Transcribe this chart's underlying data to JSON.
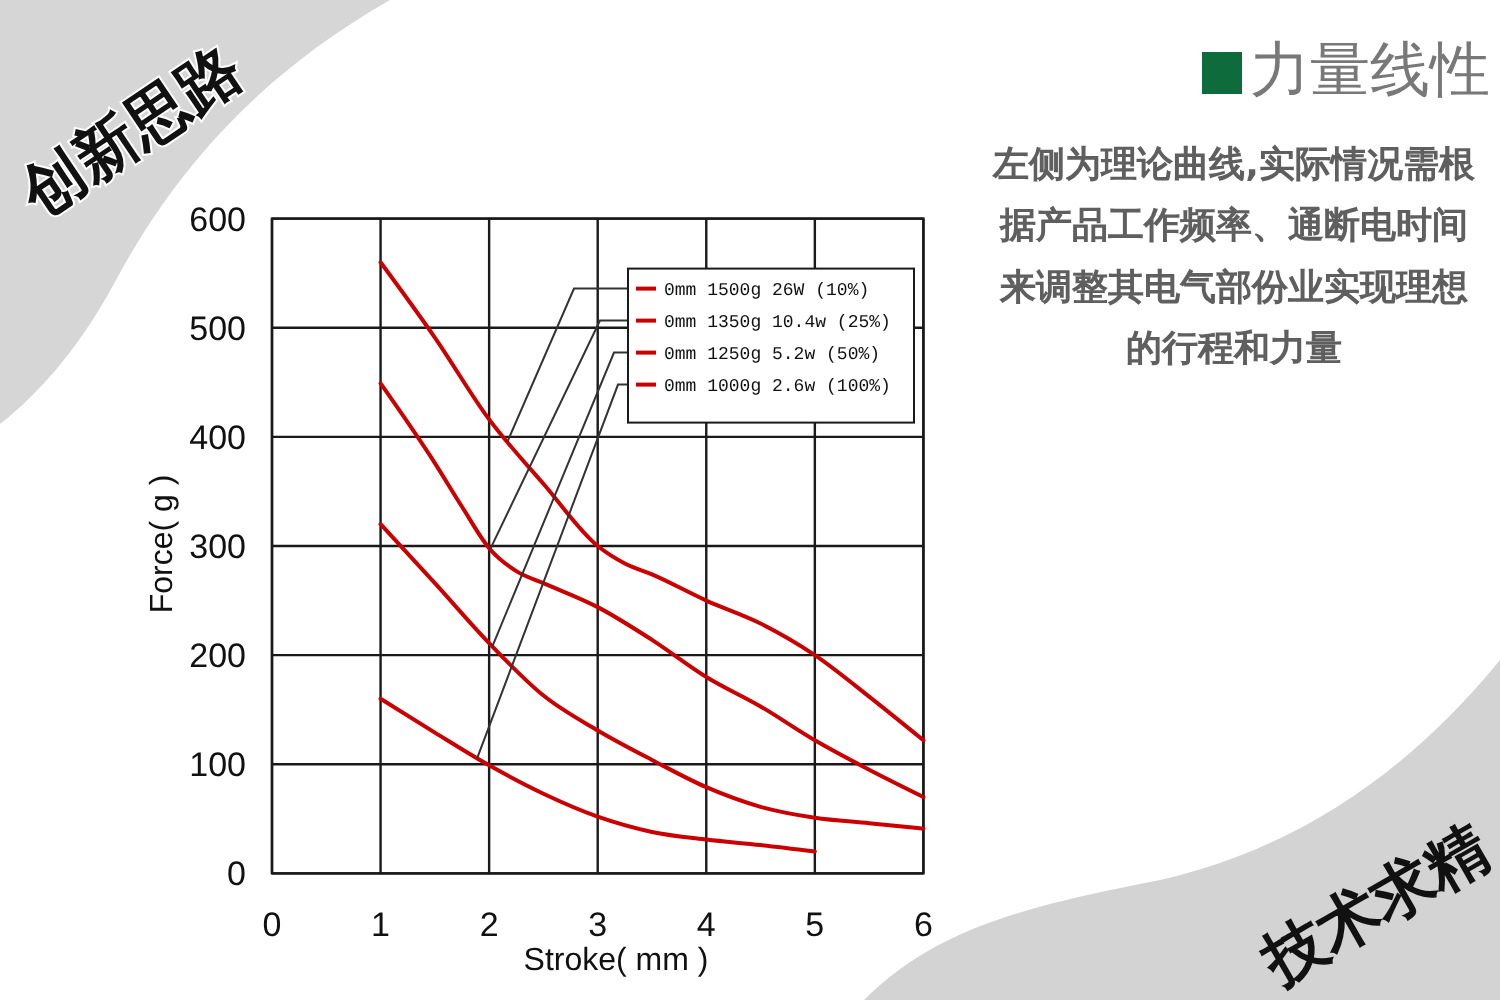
{
  "chart_data": {
    "type": "line",
    "title": "力量线性",
    "xlabel": "Stroke( mm )",
    "ylabel": "Force( g )",
    "xlim": [
      0,
      6
    ],
    "xticks": [
      0,
      1,
      2,
      3,
      4,
      5,
      6
    ],
    "ylim": [
      0,
      600
    ],
    "yticks": [
      0,
      100,
      200,
      300,
      400,
      500,
      600
    ],
    "grid": true,
    "legend": "top right",
    "series": [
      {
        "name": "0mm 1500g 26W (10%)",
        "color": "#cc0000",
        "x": [
          1,
          1.5,
          2,
          2.5,
          3,
          3.25,
          3.5,
          4,
          4.5,
          5,
          5.5,
          6
        ],
        "values": [
          560,
          491,
          416,
          357,
          300,
          284,
          274,
          250,
          229,
          200,
          162,
          122
        ]
      },
      {
        "name": "0mm 1350g 10.4w (25%)",
        "color": "#cc0000",
        "x": [
          1,
          1.5,
          1.75,
          2,
          2.25,
          2.5,
          3,
          3.5,
          4,
          4.5,
          5,
          5.5,
          6
        ],
        "values": [
          449,
          376,
          336,
          298,
          277,
          266,
          244,
          214,
          180,
          153,
          122,
          95,
          70
        ]
      },
      {
        "name": "0mm 1250g 5.2w (50%)",
        "color": "#cc0000",
        "x": [
          1,
          1.5,
          2,
          2.5,
          3,
          3.5,
          4,
          4.5,
          5,
          5.5,
          6
        ],
        "values": [
          320,
          266,
          211,
          163,
          131,
          104,
          79,
          61,
          51,
          46,
          41
        ]
      },
      {
        "name": "0mm 1000g 2.6w (100%)",
        "color": "#cc0000",
        "x": [
          1,
          1.5,
          2,
          2.5,
          3,
          3.5,
          4,
          4.5,
          5
        ],
        "values": [
          160,
          129,
          99,
          73,
          52,
          38,
          31,
          26,
          20
        ]
      }
    ],
    "annotations": [
      "左侧为理论曲线,实际情况需根据产品工作频率、通断电时间来调整其电气部份业实现理想的行程和力量",
      "创新思路",
      "技术求精"
    ]
  }
}
